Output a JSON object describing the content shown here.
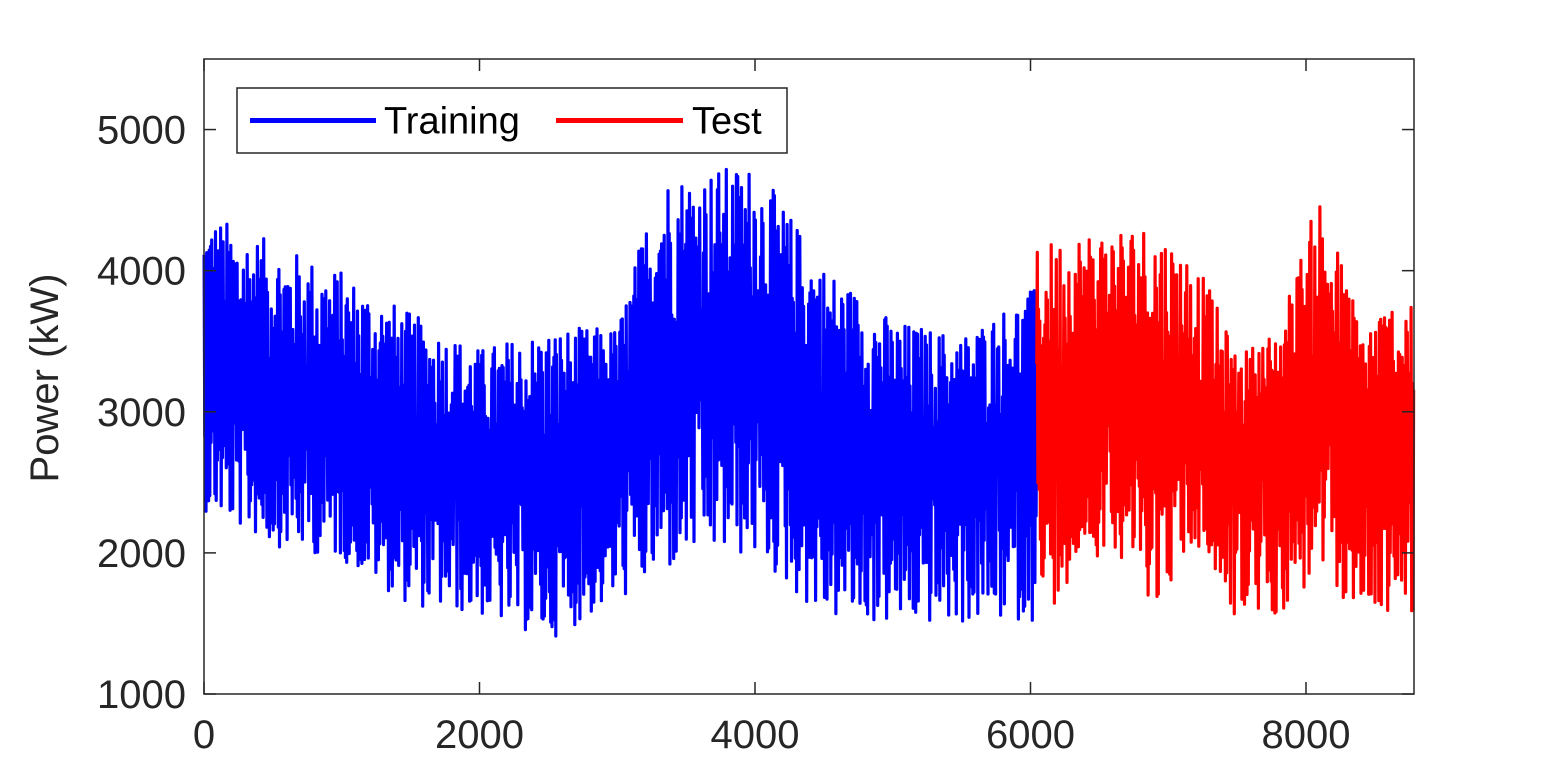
{
  "chart_data": {
    "type": "line",
    "title": "",
    "xlabel": "",
    "ylabel": "Power (kW)",
    "xlim": [
      0,
      8784
    ],
    "ylim": [
      1000,
      5500
    ],
    "x_ticks": [
      0,
      2000,
      4000,
      6000,
      8000
    ],
    "y_ticks": [
      1000,
      2000,
      3000,
      4000,
      5000
    ],
    "x_tick_labels": [
      "0",
      "2000",
      "4000",
      "6000",
      "8000"
    ],
    "y_tick_labels": [
      "1000",
      "2000",
      "3000",
      "4000",
      "5000"
    ],
    "grid": false,
    "legend": {
      "placement": "top-left",
      "orientation": "horizontal",
      "entries": [
        "Training",
        "Test"
      ]
    },
    "series": [
      {
        "name": "Training",
        "color": "#0000ff",
        "x_range": [
          1,
          6048
        ],
        "approx_envelope": {
          "x": [
            0,
            500,
            1000,
            1500,
            2000,
            2500,
            3000,
            3300,
            3600,
            4000,
            4500,
            5000,
            5500,
            6048
          ],
          "max": [
            4430,
            4200,
            4000,
            3700,
            3450,
            3600,
            3600,
            4680,
            4720,
            4760,
            4050,
            3650,
            3550,
            3890
          ],
          "min": [
            2300,
            2050,
            1950,
            1620,
            1550,
            1380,
            1650,
            1800,
            1980,
            1950,
            1520,
            1480,
            1490,
            1520
          ],
          "mean": [
            3250,
            3100,
            2950,
            2700,
            2600,
            2500,
            2800,
            3300,
            3400,
            3450,
            2900,
            2700,
            2650,
            2900
          ]
        }
      },
      {
        "name": "Test",
        "color": "#ff0000",
        "x_range": [
          6049,
          8784
        ],
        "approx_envelope": {
          "x": [
            6049,
            6300,
            6600,
            6900,
            7200,
            7500,
            7800,
            8100,
            8400,
            8784
          ],
          "max": [
            4180,
            4280,
            4330,
            4350,
            4100,
            3400,
            3600,
            4570,
            3650,
            3930
          ],
          "min": [
            1420,
            1850,
            2050,
            1620,
            2050,
            1500,
            1550,
            1800,
            1560,
            1580
          ],
          "mean": [
            2900,
            3100,
            3200,
            3000,
            2900,
            2700,
            2800,
            3200,
            2700,
            2700
          ]
        }
      }
    ]
  }
}
